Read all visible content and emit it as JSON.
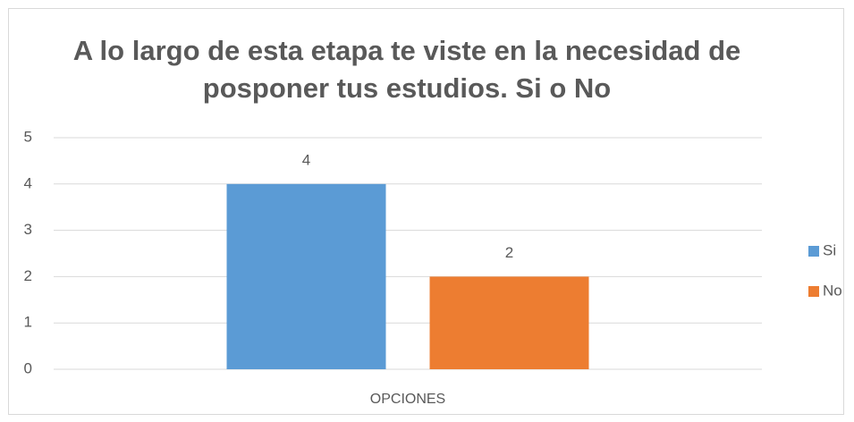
{
  "chart_data": {
    "type": "bar",
    "title": "A lo largo de esta etapa te viste en la necesidad de posponer tus estudios. Si o No",
    "categories": [
      "OPCIONES"
    ],
    "series": [
      {
        "name": "Si",
        "color": "#5b9bd5",
        "values": [
          4
        ]
      },
      {
        "name": "No",
        "color": "#ed7d31",
        "values": [
          2
        ]
      }
    ],
    "ylim": [
      0,
      5
    ],
    "yticks": [
      0,
      1,
      2,
      3,
      4,
      5
    ],
    "grid": true,
    "legend": "right"
  }
}
